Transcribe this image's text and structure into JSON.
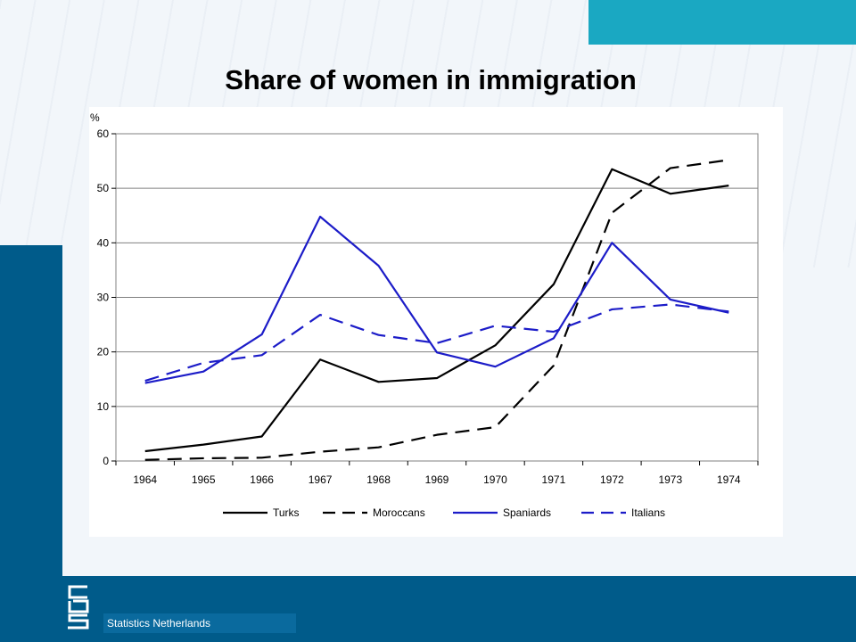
{
  "slide": {
    "title": "Share of women in immigration",
    "footer": "Statistics Netherlands",
    "colors": {
      "band": "#005b8a",
      "accent": "#1aa8c2",
      "background": "#f2f6fa"
    },
    "logo_icon": "cbs-logo-icon"
  },
  "chart_data": {
    "type": "line",
    "title": "",
    "xlabel": "",
    "ylabel": "%",
    "categories": [
      "1964",
      "1965",
      "1966",
      "1967",
      "1968",
      "1969",
      "1970",
      "1971",
      "1972",
      "1973",
      "1974"
    ],
    "yticks": [
      "0",
      "10",
      "20",
      "30",
      "40",
      "50",
      "60"
    ],
    "ylim": [
      0,
      60
    ],
    "grid": true,
    "legend": "bottom",
    "series": [
      {
        "name": "Turks",
        "color": "#000000",
        "dash": "solid",
        "values": [
          1.8,
          3.0,
          4.5,
          18.6,
          14.5,
          15.2,
          21.2,
          32.4,
          53.5,
          49.0,
          50.5
        ]
      },
      {
        "name": "Moroccans",
        "color": "#000000",
        "dash": "dashed",
        "values": [
          0.2,
          0.5,
          0.6,
          1.7,
          2.5,
          4.8,
          6.2,
          17.5,
          45.5,
          53.7,
          55.2
        ]
      },
      {
        "name": "Spaniards",
        "color": "#1c1cc8",
        "dash": "solid",
        "values": [
          14.3,
          16.4,
          23.2,
          44.8,
          35.8,
          19.9,
          17.3,
          22.5,
          40.0,
          29.6,
          27.2
        ]
      },
      {
        "name": "Italians",
        "color": "#1c1cc8",
        "dash": "dashed",
        "values": [
          14.7,
          18.0,
          19.4,
          26.8,
          23.1,
          21.6,
          24.8,
          23.7,
          27.8,
          28.7,
          27.4
        ]
      }
    ]
  }
}
